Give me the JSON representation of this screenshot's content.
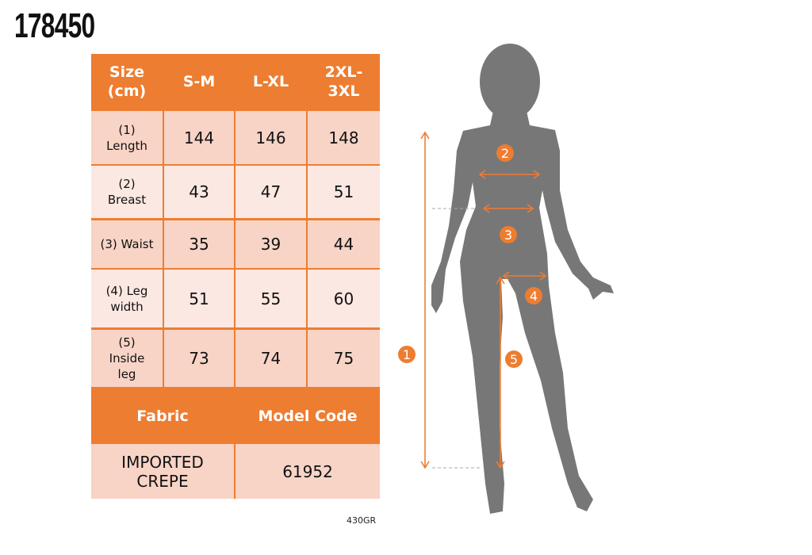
{
  "product_code": "178450",
  "table": {
    "header": [
      "Size\n(cm)",
      "S-M",
      "L-XL",
      "2XL-\n3XL"
    ],
    "rows": [
      {
        "label": "(1)\nLength",
        "values": [
          "144",
          "146",
          "148"
        ]
      },
      {
        "label": "(2)\nBreast",
        "values": [
          "43",
          "47",
          "51"
        ]
      },
      {
        "label": "(3) Waist",
        "values": [
          "35",
          "39",
          "44"
        ]
      },
      {
        "label": "(4) Leg\nwidth",
        "values": [
          "51",
          "55",
          "60"
        ]
      },
      {
        "label": "(5)\nInside\nleg",
        "values": [
          "73",
          "74",
          "75"
        ]
      }
    ],
    "fabric_header": "Fabric",
    "model_code_header": "Model Code",
    "fabric_value": "IMPORTED\nCREPE",
    "model_code_value": "61952"
  },
  "diagram": {
    "markers": [
      "1",
      "2",
      "3",
      "4",
      "5"
    ],
    "accent_color": "#ED7D31",
    "silhouette_color": "#777777"
  },
  "footer_code": "430GR"
}
